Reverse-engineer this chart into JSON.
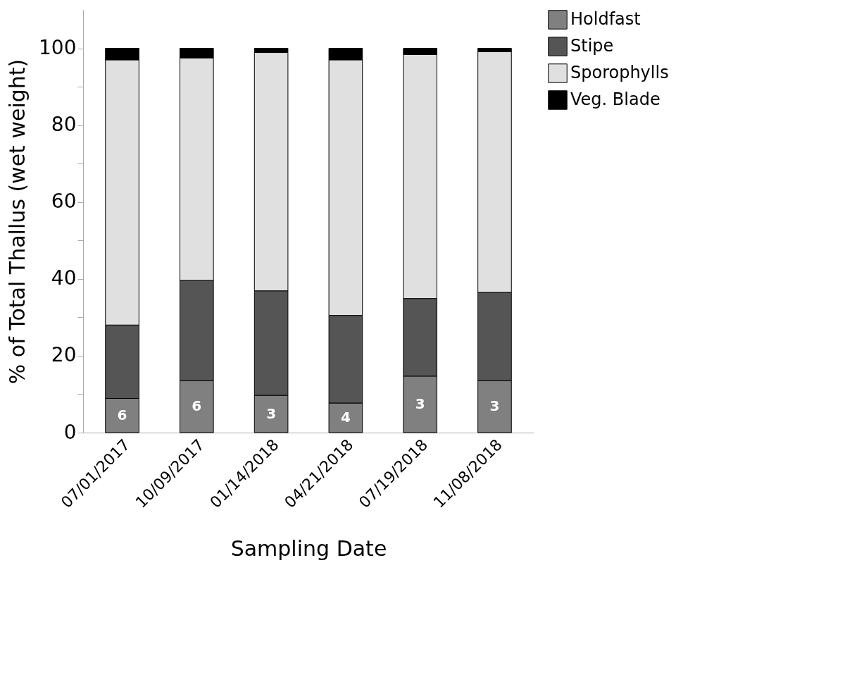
{
  "chart_data": {
    "type": "bar",
    "stacked": true,
    "xlabel": "Sampling Date",
    "ylabel": "% of Total Thallus (wet weight)",
    "categories": [
      "07/01/2017",
      "10/09/2017",
      "01/14/2018",
      "04/21/2018",
      "07/19/2018",
      "11/08/2018"
    ],
    "series": [
      {
        "name": "Holdfast",
        "color": "#808080",
        "values": [
          8.9,
          13.5,
          9.7,
          7.7,
          14.7,
          13.5
        ]
      },
      {
        "name": "Stipe",
        "color": "#555555",
        "values": [
          19.1,
          26.1,
          27.2,
          22.8,
          20.2,
          23.0
        ]
      },
      {
        "name": "Sporophylls",
        "color": "#e0e0e0",
        "values": [
          69.0,
          57.9,
          62.0,
          66.5,
          63.5,
          62.6
        ]
      },
      {
        "name": "Veg. Blade",
        "color": "#000000",
        "values": [
          3.0,
          2.5,
          1.1,
          3.0,
          1.6,
          0.9
        ]
      }
    ],
    "ylim": [
      0,
      110
    ],
    "yticks": [
      0,
      {
        "value": 10,
        "label": null
      },
      20,
      {
        "value": 30,
        "label": null
      },
      40,
      {
        "value": 50,
        "label": null
      },
      60,
      {
        "value": 70,
        "label": null
      },
      80,
      {
        "value": 90,
        "label": null
      },
      100
    ],
    "grid": false,
    "legend": "top right",
    "annotations": [
      "6",
      "6",
      "3",
      "4",
      "3",
      "3"
    ]
  }
}
